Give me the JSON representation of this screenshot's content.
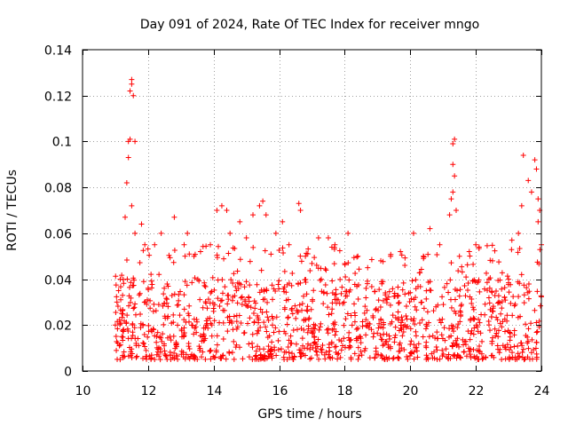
{
  "chart_data": {
    "type": "scatter",
    "title": "Day 091 of 2024, Rate Of TEC Index for receiver mngo",
    "xlabel": "GPS time / hours",
    "ylabel": "ROTI / TECUs",
    "xlim": [
      10,
      24
    ],
    "ylim": [
      0,
      0.14
    ],
    "xticks": [
      10,
      12,
      14,
      16,
      18,
      20,
      22,
      24
    ],
    "yticks": [
      0,
      0.02,
      0.04,
      0.06,
      0.08,
      0.1,
      0.12,
      0.14
    ],
    "xtick_labels": [
      "10",
      "12",
      "14",
      "16",
      "18",
      "20",
      "22",
      "24"
    ],
    "ytick_labels": [
      "0",
      "0.02",
      "0.04",
      "0.06",
      "0.08",
      "0.1",
      "0.12",
      "0.14"
    ],
    "grid": true,
    "marker": "+",
    "series": [
      {
        "name": "ROTI",
        "color": "#ff0000",
        "time_range_hours": [
          11.0,
          24.0
        ],
        "typical_range": [
          0.005,
          0.04
        ],
        "points": [
          [
            11.0,
            0.02
          ],
          [
            11.05,
            0.03
          ],
          [
            11.1,
            0.035
          ],
          [
            11.15,
            0.04
          ],
          [
            11.2,
            0.025
          ],
          [
            11.3,
            0.067
          ],
          [
            11.35,
            0.082
          ],
          [
            11.4,
            0.093
          ],
          [
            11.4,
            0.1
          ],
          [
            11.45,
            0.101
          ],
          [
            11.45,
            0.122
          ],
          [
            11.5,
            0.125
          ],
          [
            11.5,
            0.127
          ],
          [
            11.55,
            0.12
          ],
          [
            11.6,
            0.1
          ],
          [
            11.5,
            0.072
          ],
          [
            11.6,
            0.06
          ],
          [
            11.8,
            0.064
          ],
          [
            11.9,
            0.055
          ],
          [
            12.2,
            0.055
          ],
          [
            12.4,
            0.06
          ],
          [
            12.8,
            0.067
          ],
          [
            13.1,
            0.055
          ],
          [
            13.2,
            0.06
          ],
          [
            13.4,
            0.05
          ],
          [
            13.6,
            0.052
          ],
          [
            13.9,
            0.055
          ],
          [
            14.1,
            0.07
          ],
          [
            14.25,
            0.072
          ],
          [
            14.4,
            0.07
          ],
          [
            14.5,
            0.06
          ],
          [
            14.8,
            0.065
          ],
          [
            15.0,
            0.058
          ],
          [
            15.2,
            0.068
          ],
          [
            15.4,
            0.072
          ],
          [
            15.5,
            0.074
          ],
          [
            15.6,
            0.068
          ],
          [
            15.9,
            0.06
          ],
          [
            16.1,
            0.065
          ],
          [
            16.3,
            0.055
          ],
          [
            16.6,
            0.073
          ],
          [
            16.65,
            0.07
          ],
          [
            16.8,
            0.05
          ],
          [
            17.2,
            0.058
          ],
          [
            17.5,
            0.058
          ],
          [
            17.7,
            0.055
          ],
          [
            18.1,
            0.06
          ],
          [
            18.4,
            0.05
          ],
          [
            18.7,
            0.045
          ],
          [
            19.1,
            0.048
          ],
          [
            19.4,
            0.05
          ],
          [
            19.7,
            0.052
          ],
          [
            20.1,
            0.06
          ],
          [
            20.4,
            0.05
          ],
          [
            20.6,
            0.062
          ],
          [
            20.9,
            0.055
          ],
          [
            21.2,
            0.068
          ],
          [
            21.3,
            0.099
          ],
          [
            21.35,
            0.101
          ],
          [
            21.3,
            0.09
          ],
          [
            21.35,
            0.085
          ],
          [
            21.3,
            0.078
          ],
          [
            21.25,
            0.075
          ],
          [
            21.4,
            0.07
          ],
          [
            21.5,
            0.05
          ],
          [
            21.8,
            0.052
          ],
          [
            22.0,
            0.055
          ],
          [
            22.1,
            0.054
          ],
          [
            22.4,
            0.04
          ],
          [
            22.7,
            0.03
          ],
          [
            23.0,
            0.04
          ],
          [
            23.1,
            0.057
          ],
          [
            23.3,
            0.06
          ],
          [
            23.4,
            0.072
          ],
          [
            23.45,
            0.094
          ],
          [
            23.6,
            0.083
          ],
          [
            23.7,
            0.078
          ],
          [
            23.8,
            0.092
          ],
          [
            23.85,
            0.088
          ],
          [
            23.9,
            0.075
          ],
          [
            23.95,
            0.07
          ],
          [
            23.9,
            0.065
          ],
          [
            24.0,
            0.055
          ]
        ]
      }
    ]
  }
}
